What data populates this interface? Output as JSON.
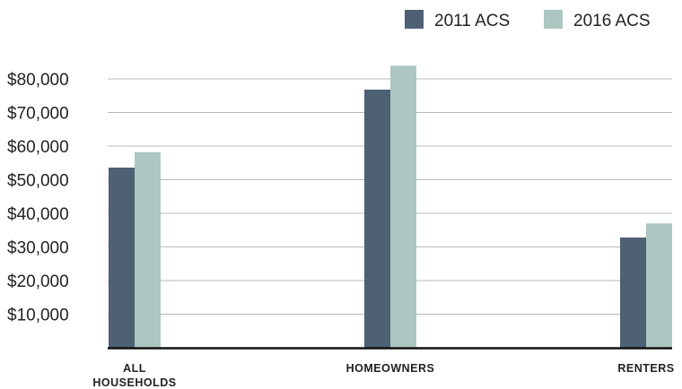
{
  "chart_data": {
    "type": "bar",
    "categories": [
      "ALL HOUSEHOLDS",
      "HOMEOWNERS",
      "RENTERS"
    ],
    "series": [
      {
        "name": "2011 ACS",
        "values": [
          53600,
          76800,
          32800
        ],
        "color": "#4e6073"
      },
      {
        "name": "2016 ACS",
        "values": [
          58200,
          83900,
          37000
        ],
        "color": "#acc6c2"
      }
    ],
    "y_tick_labels": [
      "$10,000",
      "$20,000",
      "$30,000",
      "$40,000",
      "$50,000",
      "$60,000",
      "$70,000",
      "$80,000"
    ],
    "y_ticks": [
      10000,
      20000,
      30000,
      40000,
      50000,
      60000,
      70000,
      80000
    ],
    "ylim": [
      0,
      80000
    ],
    "grid": true,
    "legend_position": "top-right",
    "title": "",
    "xlabel": "",
    "ylabel": ""
  }
}
